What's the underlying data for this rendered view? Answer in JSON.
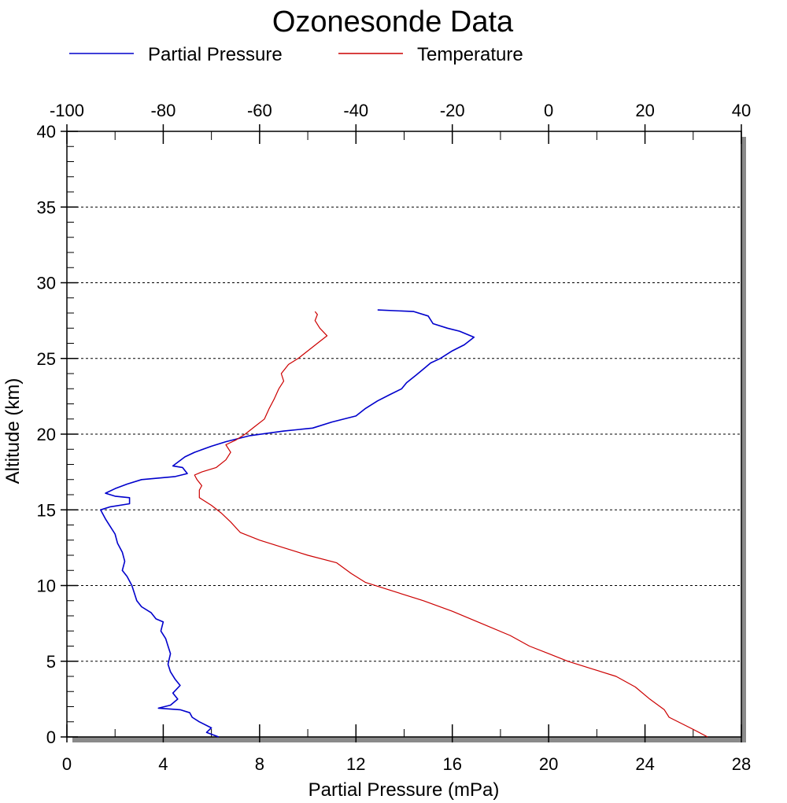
{
  "chart_data": {
    "type": "line",
    "title": "Ozonesonde Data",
    "xlabel": "Partial Pressure (mPa)",
    "ylabel": "Altitude (km)",
    "x_bottom": {
      "range": [
        0,
        28
      ],
      "ticks": [
        0,
        4,
        8,
        12,
        16,
        20,
        24,
        28
      ],
      "tick_labels": [
        "0",
        "4",
        "8",
        "12",
        "16",
        "20",
        "24",
        "28"
      ]
    },
    "x_top": {
      "range": [
        -100,
        40
      ],
      "ticks": [
        -100,
        -80,
        -60,
        -40,
        -20,
        0,
        20,
        40
      ],
      "tick_labels": [
        "-100",
        "-80",
        "-60",
        "-40",
        "-20",
        "0",
        "20",
        "40"
      ]
    },
    "y": {
      "range": [
        0,
        40
      ],
      "ticks": [
        0,
        5,
        10,
        15,
        20,
        25,
        30,
        35,
        40
      ],
      "tick_labels": [
        "0",
        "5",
        "10",
        "15",
        "20",
        "25",
        "30",
        "35",
        "40"
      ]
    },
    "grid": "horizontal dotted",
    "legend_position": "top",
    "series": [
      {
        "name": "Partial Pressure",
        "axis": "bottom",
        "color": "#0000cc",
        "points": [
          [
            6.3,
            0
          ],
          [
            5.8,
            0.3
          ],
          [
            6.0,
            0.6
          ],
          [
            5.5,
            1.0
          ],
          [
            5.2,
            1.3
          ],
          [
            5.1,
            1.6
          ],
          [
            4.7,
            1.8
          ],
          [
            3.8,
            1.9
          ],
          [
            4.3,
            2.1
          ],
          [
            4.6,
            2.5
          ],
          [
            4.4,
            2.9
          ],
          [
            4.7,
            3.4
          ],
          [
            4.5,
            3.8
          ],
          [
            4.3,
            4.3
          ],
          [
            4.2,
            4.8
          ],
          [
            4.3,
            5.5
          ],
          [
            4.2,
            6.0
          ],
          [
            4.1,
            6.5
          ],
          [
            3.9,
            7.0
          ],
          [
            4.0,
            7.6
          ],
          [
            3.7,
            7.8
          ],
          [
            3.5,
            8.2
          ],
          [
            3.1,
            8.6
          ],
          [
            2.9,
            9.0
          ],
          [
            2.8,
            9.5
          ],
          [
            2.7,
            10.0
          ],
          [
            2.5,
            10.6
          ],
          [
            2.3,
            11.0
          ],
          [
            2.4,
            11.6
          ],
          [
            2.3,
            12.2
          ],
          [
            2.1,
            12.8
          ],
          [
            2.0,
            13.4
          ],
          [
            1.8,
            13.9
          ],
          [
            1.6,
            14.4
          ],
          [
            1.4,
            15.0
          ],
          [
            1.8,
            15.2
          ],
          [
            2.6,
            15.4
          ],
          [
            2.6,
            15.8
          ],
          [
            2.0,
            15.9
          ],
          [
            1.6,
            16.1
          ],
          [
            2.0,
            16.4
          ],
          [
            2.5,
            16.7
          ],
          [
            3.1,
            17.0
          ],
          [
            4.5,
            17.2
          ],
          [
            5.0,
            17.4
          ],
          [
            4.8,
            17.8
          ],
          [
            4.4,
            17.9
          ],
          [
            4.9,
            18.5
          ],
          [
            5.3,
            18.8
          ],
          [
            6.0,
            19.2
          ],
          [
            6.6,
            19.5
          ],
          [
            7.6,
            19.9
          ],
          [
            9.0,
            20.2
          ],
          [
            10.2,
            20.4
          ],
          [
            11.0,
            20.8
          ],
          [
            12.0,
            21.2
          ],
          [
            12.4,
            21.7
          ],
          [
            12.9,
            22.2
          ],
          [
            13.4,
            22.6
          ],
          [
            13.9,
            23.0
          ],
          [
            14.1,
            23.4
          ],
          [
            14.5,
            23.9
          ],
          [
            14.8,
            24.3
          ],
          [
            15.1,
            24.7
          ],
          [
            15.5,
            25.0
          ],
          [
            16.0,
            25.5
          ],
          [
            16.5,
            25.9
          ],
          [
            16.9,
            26.4
          ],
          [
            16.3,
            26.8
          ],
          [
            15.8,
            27.0
          ],
          [
            15.2,
            27.3
          ],
          [
            15.0,
            27.8
          ],
          [
            14.4,
            28.1
          ],
          [
            12.9,
            28.2
          ]
        ]
      },
      {
        "name": "Temperature",
        "axis": "top",
        "color": "#cc0000",
        "points": [
          [
            33.0,
            0
          ],
          [
            30.0,
            0.5
          ],
          [
            25.0,
            1.3
          ],
          [
            24.0,
            1.8
          ],
          [
            21.0,
            2.5
          ],
          [
            18.0,
            3.3
          ],
          [
            14.0,
            4.0
          ],
          [
            9.0,
            4.5
          ],
          [
            4.0,
            5.0
          ],
          [
            0.0,
            5.5
          ],
          [
            -4.0,
            6.0
          ],
          [
            -8.0,
            6.7
          ],
          [
            -14.0,
            7.5
          ],
          [
            -20.0,
            8.3
          ],
          [
            -26.0,
            9.0
          ],
          [
            -32.0,
            9.6
          ],
          [
            -38.0,
            10.2
          ],
          [
            -41.0,
            10.8
          ],
          [
            -44.0,
            11.5
          ],
          [
            -50.0,
            12.0
          ],
          [
            -55.0,
            12.5
          ],
          [
            -60.0,
            13.0
          ],
          [
            -64.0,
            13.5
          ],
          [
            -66.0,
            14.2
          ],
          [
            -68.0,
            14.8
          ],
          [
            -70.0,
            15.3
          ],
          [
            -72.5,
            15.8
          ],
          [
            -72.5,
            16.3
          ],
          [
            -72.0,
            16.6
          ],
          [
            -73.0,
            17.0
          ],
          [
            -73.5,
            17.3
          ],
          [
            -72.0,
            17.5
          ],
          [
            -69.0,
            17.8
          ],
          [
            -67.0,
            18.3
          ],
          [
            -66.0,
            18.8
          ],
          [
            -67.0,
            19.3
          ],
          [
            -65.0,
            19.6
          ],
          [
            -63.0,
            20.0
          ],
          [
            -61.0,
            20.5
          ],
          [
            -59.0,
            21.0
          ],
          [
            -58.0,
            21.7
          ],
          [
            -57.0,
            22.3
          ],
          [
            -56.0,
            23.0
          ],
          [
            -55.0,
            23.5
          ],
          [
            -55.5,
            24.0
          ],
          [
            -54.0,
            24.6
          ],
          [
            -52.0,
            25.0
          ],
          [
            -50.0,
            25.5
          ],
          [
            -48.0,
            26.0
          ],
          [
            -46.0,
            26.5
          ],
          [
            -47.5,
            27.0
          ],
          [
            -48.5,
            27.5
          ],
          [
            -48.0,
            27.9
          ],
          [
            -48.5,
            28.1
          ]
        ]
      }
    ]
  }
}
